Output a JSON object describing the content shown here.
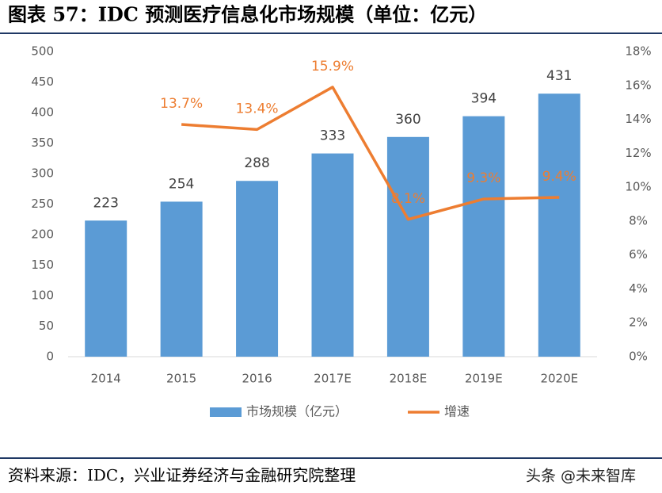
{
  "chart_data": {
    "type": "bar",
    "title": "图表 57：IDC 预测医疗信息化市场规模（单位：亿元）",
    "source": "资料来源：IDC，兴业证券经济与金融研究院整理",
    "watermark": "头条 @未来智库",
    "categories": [
      "2014",
      "2015",
      "2016",
      "2017E",
      "2018E",
      "2019E",
      "2020E"
    ],
    "series": [
      {
        "name": "市场规模（亿元）",
        "type": "bar",
        "color": "#5b9bd5",
        "values": [
          223,
          254,
          288,
          333,
          360,
          394,
          431
        ]
      },
      {
        "name": "增速",
        "type": "line",
        "axis": "y2",
        "color": "#ed7d31",
        "values": [
          null,
          13.7,
          13.4,
          15.9,
          8.1,
          9.3,
          9.4
        ],
        "value_labels": [
          null,
          "13.7%",
          "13.4%",
          "15.9%",
          "8.1%",
          "9.3%",
          "9.4%"
        ]
      }
    ],
    "ylim": [
      0,
      500
    ],
    "yticks": [
      0,
      50,
      100,
      150,
      200,
      250,
      300,
      350,
      400,
      450,
      500
    ],
    "y2lim": [
      0,
      18
    ],
    "y2ticks": [
      {
        "value": 0,
        "label": "0%"
      },
      {
        "value": 2,
        "label": "2%"
      },
      {
        "value": 4,
        "label": "4%"
      },
      {
        "value": 6,
        "label": "6%"
      },
      {
        "value": 8,
        "label": "8%"
      },
      {
        "value": 10,
        "label": "10%"
      },
      {
        "value": 12,
        "label": "12%"
      },
      {
        "value": 14,
        "label": "14%"
      },
      {
        "value": 16,
        "label": "16%"
      },
      {
        "value": 18,
        "label": "18%"
      }
    ],
    "grid": false,
    "legend": "bottom"
  }
}
